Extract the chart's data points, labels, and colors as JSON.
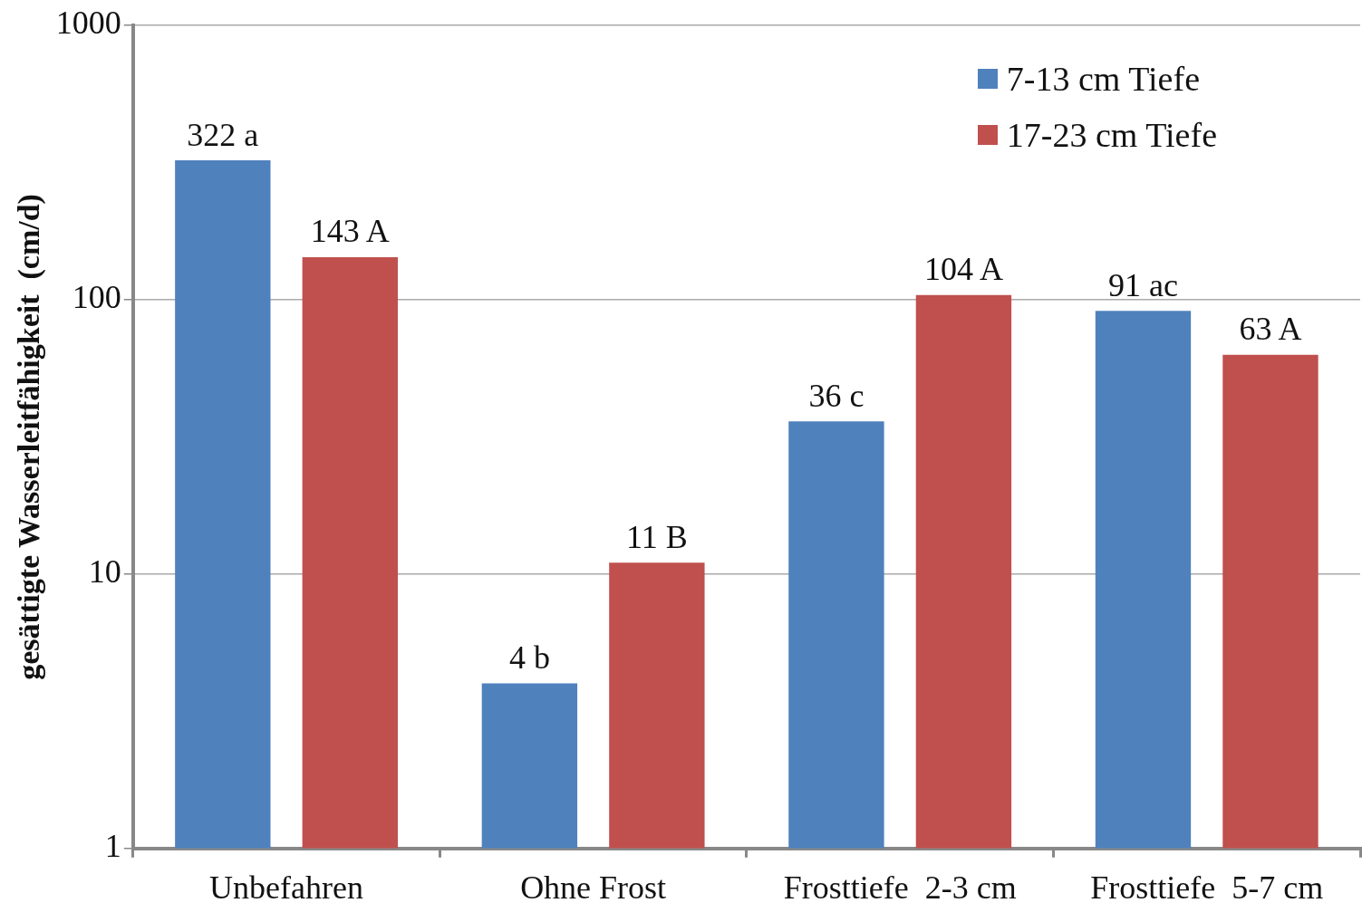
{
  "chart_data": {
    "type": "bar",
    "ylabel": "gesättigte Wasserleitfähigkeit  (cm/d)",
    "categories": [
      "Unbefahren",
      "Ohne Frost",
      "Frosttiefe  2-3 cm",
      "Frosttiefe  5-7 cm"
    ],
    "series": [
      {
        "name": "7-13 cm Tiefe",
        "color": "#4f81bd",
        "values": [
          322,
          4,
          36,
          91
        ],
        "value_labels": [
          "322 a",
          "4 b",
          "36 c",
          "91 ac"
        ]
      },
      {
        "name": "17-23 cm Tiefe",
        "color": "#c0504d",
        "values": [
          143,
          11,
          104,
          63
        ],
        "value_labels": [
          "143 A",
          "11 B",
          "104 A",
          "63 A"
        ]
      }
    ],
    "log": true,
    "ylim": [
      1,
      1000
    ],
    "yticks": [
      1,
      10,
      100,
      1000
    ],
    "grid": "y",
    "legend": "top right"
  }
}
